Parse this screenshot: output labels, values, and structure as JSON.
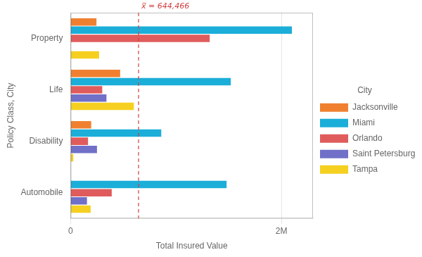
{
  "chart_data": {
    "type": "bar",
    "orientation": "horizontal",
    "categories": [
      "Automobile",
      "Disability",
      "Life",
      "Property"
    ],
    "series": [
      {
        "name": "Jacksonville",
        "color": "#F08030",
        "values": [
          0,
          195000,
          470000,
          245000
        ]
      },
      {
        "name": "Miami",
        "color": "#1BAED8",
        "values": [
          1480000,
          860000,
          1520000,
          2100000
        ]
      },
      {
        "name": "Orlando",
        "color": "#E05C5C",
        "values": [
          390000,
          165000,
          300000,
          1320000
        ]
      },
      {
        "name": "Saint Petersburg",
        "color": "#7070C8",
        "values": [
          155000,
          250000,
          340000,
          0
        ]
      },
      {
        "name": "Tampa",
        "color": "#F5D020",
        "values": [
          190000,
          25000,
          600000,
          270000
        ]
      }
    ],
    "xlabel": "Total Insured Value",
    "ylabel": "Policy Class, City",
    "xlim": [
      0,
      2300000
    ],
    "xticks": [
      0,
      {
        "value": 2000000,
        "label": "2M"
      }
    ],
    "grid": "x",
    "legend": "right",
    "legend_title": "City",
    "annotations": [
      {
        "x": 644466,
        "label": "x̅ = 644,466",
        "color": "#D04040",
        "line_style": "dashed"
      }
    ]
  }
}
